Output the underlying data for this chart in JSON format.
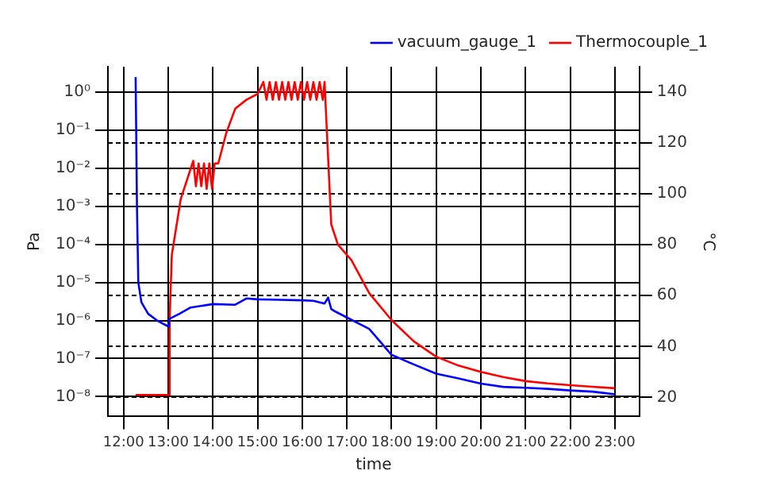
{
  "chart_data": {
    "type": "line",
    "xlabel": "time",
    "ylabel": "Pa",
    "y2label": "°C",
    "xlim": [
      11.65,
      23.55
    ],
    "xticks": [
      {
        "value": 12,
        "label": "12:00"
      },
      {
        "value": 13,
        "label": "13:00"
      },
      {
        "value": 14,
        "label": "14:00"
      },
      {
        "value": 15,
        "label": "15:00"
      },
      {
        "value": 16,
        "label": "16:00"
      },
      {
        "value": 17,
        "label": "17:00"
      },
      {
        "value": 18,
        "label": "18:00"
      },
      {
        "value": 19,
        "label": "19:00"
      },
      {
        "value": 20,
        "label": "20:00"
      },
      {
        "value": 21,
        "label": "21:00"
      },
      {
        "value": 22,
        "label": "22:00"
      },
      {
        "value": 23,
        "label": "23:00"
      }
    ],
    "log": "y",
    "ylim": [
      3e-09,
      4.7
    ],
    "yticks": [
      {
        "value": 1e-08,
        "label": "10⁻⁸"
      },
      {
        "value": 1e-07,
        "label": "10⁻⁷"
      },
      {
        "value": 1e-06,
        "label": "10⁻⁶"
      },
      {
        "value": 1e-05,
        "label": "10⁻⁵"
      },
      {
        "value": 0.0001,
        "label": "10⁻⁴"
      },
      {
        "value": 0.001,
        "label": "10⁻³"
      },
      {
        "value": 0.01,
        "label": "10⁻²"
      },
      {
        "value": 0.1,
        "label": "10⁻¹"
      },
      {
        "value": 1,
        "label": "10⁰"
      }
    ],
    "y2lim": [
      12.5,
      150
    ],
    "y2ticks": [
      20,
      40,
      60,
      80,
      100,
      120,
      140
    ],
    "grid": true,
    "legend": "top right",
    "marker": "none",
    "line_style": "solid",
    "series": [
      {
        "name": "vacuum_gauge_1",
        "color": "#0000ff",
        "x": [
          12.27,
          12.3,
          12.33,
          12.4,
          12.55,
          12.75,
          13.0,
          13.02,
          13.25,
          13.5,
          14.0,
          14.5,
          14.75,
          15.0,
          15.5,
          16.0,
          16.25,
          16.5,
          16.58,
          16.65,
          16.75,
          17.0,
          17.5,
          18.0,
          18.5,
          19.0,
          19.5,
          20.0,
          20.5,
          21.0,
          21.5,
          22.0,
          22.5,
          23.0
        ],
        "values": [
          2.5,
          0.001,
          1e-05,
          3e-06,
          1.5e-06,
          1e-06,
          7e-07,
          1.1e-06,
          1.5e-06,
          2.2e-06,
          2.7e-06,
          2.6e-06,
          3.8e-06,
          3.6e-06,
          3.5e-06,
          3.4e-06,
          3.3e-06,
          2.8e-06,
          4e-06,
          2e-06,
          1.7e-06,
          1.2e-06,
          6e-07,
          1.25e-07,
          7e-08,
          4e-08,
          3e-08,
          2.2e-08,
          1.8e-08,
          1.7e-08,
          1.6e-08,
          1.45e-08,
          1.35e-08,
          1.15e-08
        ]
      },
      {
        "name": "Thermocouple_1",
        "color": "#ff0000",
        "axis": "y2",
        "x": [
          12.27,
          13.0,
          13.03,
          13.08,
          13.28,
          13.56,
          13.62,
          13.68,
          13.74,
          13.8,
          13.86,
          13.92,
          13.98,
          14.04,
          14.12,
          14.3,
          14.5,
          14.75,
          15.0,
          15.13,
          15.2,
          15.27,
          15.34,
          15.41,
          15.48,
          15.55,
          15.62,
          15.69,
          15.76,
          15.83,
          15.9,
          15.97,
          16.04,
          16.11,
          16.18,
          16.25,
          16.32,
          16.39,
          16.46,
          16.5,
          16.65,
          16.8,
          17.1,
          17.5,
          18.0,
          18.5,
          19.0,
          19.5,
          20.0,
          20.5,
          21.0,
          21.5,
          22.0,
          22.5,
          23.0
        ],
        "values": [
          21,
          21,
          50,
          76,
          98,
          113,
          103,
          112,
          103,
          112,
          102,
          112,
          102,
          112,
          112,
          124,
          133.5,
          137,
          139.3,
          144,
          137,
          144,
          137,
          144,
          137,
          144,
          137,
          144,
          137,
          144,
          137,
          144,
          137,
          144,
          137,
          144,
          137,
          144,
          137,
          144,
          88,
          80,
          74,
          61,
          50.4,
          42,
          36,
          32.5,
          30,
          28,
          26.4,
          25.5,
          24.8,
          24.2,
          23.6
        ]
      }
    ]
  }
}
